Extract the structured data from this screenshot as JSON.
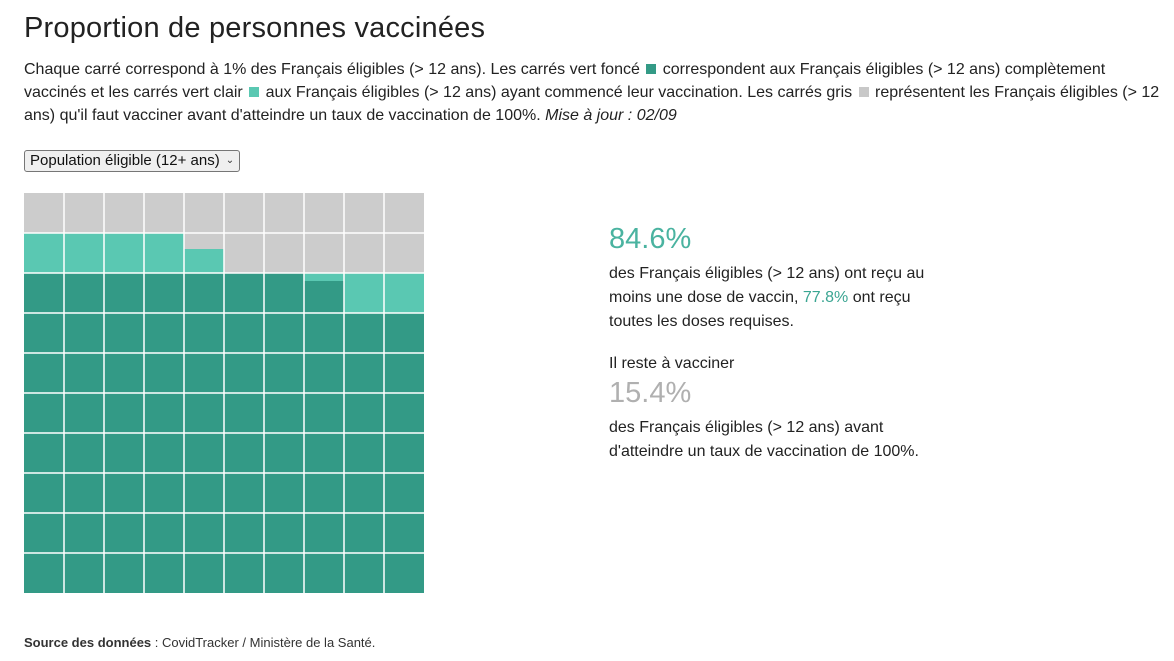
{
  "title": "Proportion de personnes vaccinées",
  "description": {
    "part1": "Chaque carré correspond à 1% des Français éligibles (> 12 ans). Les carrés vert foncé",
    "part2": "correspondent aux Français éligibles (> 12 ans) complètement vaccinés et les carrés vert clair",
    "part3": "aux Français éligibles (> 12 ans) ayant commencé leur vaccination. Les carrés gris",
    "part4": "représentent les Français éligibles (> 12 ans) qu'il faut vacciner avant d'atteindre un taux de vaccination de 100%.",
    "update": "Mise à jour : 02/09"
  },
  "population_select": {
    "selected": "Population éligible (12+ ans)"
  },
  "colors": {
    "full": "#339a86",
    "partial": "#5ac8b2",
    "remaining": "#cccccc",
    "accent_text": "#4ab3a0",
    "grey_text": "#b0b0b0"
  },
  "stats": {
    "at_least_one_pct": "84.6%",
    "line1": "des Français éligibles (> 12 ans) ont reçu au moins une dose de vaccin,",
    "full_pct": "77.8%",
    "line2": "ont reçu toutes les doses requises.",
    "remaining_label": "Il reste à vacciner",
    "remaining_pct": "15.4%",
    "line3": "des Français éligibles (> 12 ans) avant d'atteindre un taux de vaccination de 100%."
  },
  "source": {
    "label": "Source des données",
    "text": " : CovidTracker / Ministère de la Santé."
  },
  "chart_data": {
    "type": "waffle",
    "grid": [
      10,
      10
    ],
    "unit": "1% des Français éligibles",
    "series": [
      {
        "key": "full",
        "value": 77.8
      },
      {
        "key": "partial",
        "value": 6.8
      },
      {
        "key": "remaining",
        "value": 15.4
      }
    ]
  }
}
